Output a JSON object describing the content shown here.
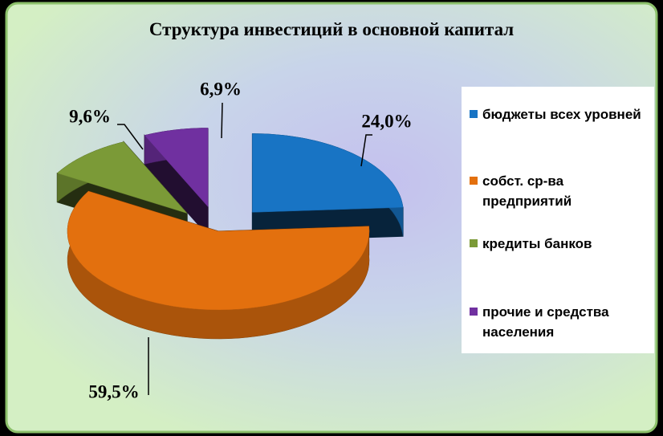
{
  "chart_data": {
    "type": "pie",
    "title": "Структура инвестиций в основной капитал",
    "categories": [
      "бюджеты всех уровней",
      "собст. ср-ва предприятий",
      "кредиты банков",
      "прочие и средства населения"
    ],
    "values": [
      24.0,
      59.5,
      9.6,
      6.9
    ],
    "value_labels": [
      "24,0%",
      "59,5%",
      "9,6%",
      "6,9%"
    ],
    "colors": [
      "#1874c4",
      "#e3700e",
      "#7b9a37",
      "#7030a0"
    ],
    "legend": "right"
  }
}
